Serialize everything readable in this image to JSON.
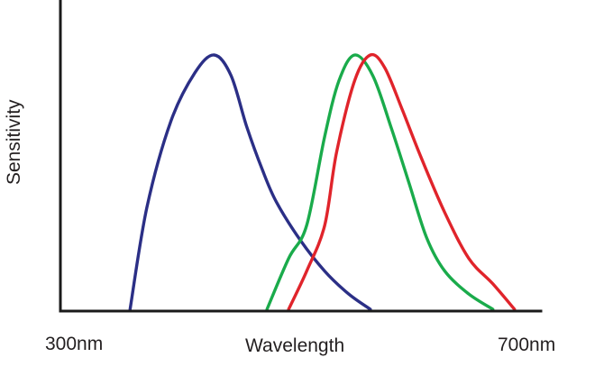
{
  "chart_data": {
    "type": "line",
    "title": "",
    "xlabel": "Wavelength",
    "ylabel": "Sensitivity",
    "x_tick_labels": [
      "300nm",
      "700nm"
    ],
    "xlim": [
      300,
      700
    ],
    "ylim": [
      0,
      1.2
    ],
    "x_unit": "nm",
    "grid": false,
    "legend": "none",
    "series": [
      {
        "color": "#2b2f86",
        "x": [
          358,
          372,
          392,
          412,
          428,
          442,
          455,
          468,
          480,
          500,
          520,
          540,
          558
        ],
        "y": [
          0.0,
          0.4,
          0.74,
          0.93,
          1.0,
          0.92,
          0.72,
          0.55,
          0.42,
          0.27,
          0.15,
          0.06,
          0.0
        ]
      },
      {
        "color": "#1aab4b",
        "x": [
          472,
          490,
          505,
          520,
          532,
          545,
          560,
          575,
          590,
          605,
          620,
          640,
          660
        ],
        "y": [
          0.0,
          0.2,
          0.33,
          0.68,
          0.9,
          1.0,
          0.92,
          0.72,
          0.5,
          0.28,
          0.15,
          0.06,
          0.0
        ]
      },
      {
        "color": "#e0242b",
        "x": [
          490,
          505,
          520,
          530,
          545,
          558,
          570,
          585,
          600,
          620,
          640,
          660,
          678
        ],
        "y": [
          0.0,
          0.15,
          0.33,
          0.62,
          0.9,
          1.0,
          0.95,
          0.78,
          0.6,
          0.38,
          0.2,
          0.1,
          0.0
        ]
      }
    ]
  }
}
